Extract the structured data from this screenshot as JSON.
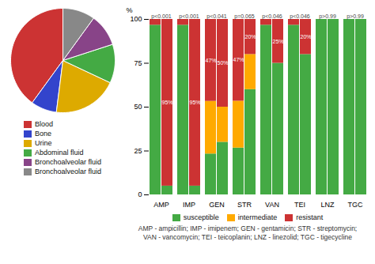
{
  "chart_data": [
    {
      "type": "pie",
      "categories": [
        "Blood",
        "Bone",
        "Urine",
        "Abdominal fluid",
        "Bronchoalveolar fluid",
        "Bronchoalveolar fluid"
      ],
      "values": [
        40,
        8,
        20,
        12,
        10,
        10
      ],
      "colors": [
        "#cc3333",
        "#3344cc",
        "#ddaa00",
        "#44aa44",
        "#884488",
        "#888888"
      ],
      "legend": "bottom"
    },
    {
      "type": "bar",
      "stacked": true,
      "categories": [
        "AMP",
        "IMP",
        "GEN",
        "STR",
        "VAN",
        "TEI",
        "LNZ",
        "TGC"
      ],
      "series": [
        {
          "name": "susceptible",
          "color": "#44aa44",
          "values": [
            [
              96.7,
              96.7,
              23.3,
              26.7,
              96.7,
              96.7,
              100,
              100
            ],
            [
              5,
              5,
              30,
              60,
              75,
              80,
              100,
              100
            ]
          ]
        },
        {
          "name": "intermediate",
          "color": "#ffaa00",
          "values": [
            [
              0,
              0,
              30,
              26.7,
              0,
              0,
              0,
              0
            ],
            [
              0,
              0,
              20,
              20,
              0,
              0,
              0,
              0
            ]
          ]
        },
        {
          "name": "resistant",
          "color": "#cc3333",
          "values": [
            [
              3.3,
              3.3,
              46.7,
              46.6,
              3.3,
              3.3,
              0,
              0
            ],
            [
              95,
              95,
              50,
              20,
              25,
              20,
              0,
              0
            ]
          ],
          "value_labels": [
            [
              null,
              null,
              "47%",
              "47%",
              null,
              null,
              null,
              null
            ],
            [
              "95%",
              "95%",
              "50%",
              "20%",
              "25%",
              "20%",
              null,
              null
            ]
          ]
        }
      ],
      "data_labels": true,
      "annotations": [
        "p<0.001",
        "p<0.001",
        "p<0.041",
        "p=0.065",
        "p<0.046",
        "p<0.046",
        "p>0.99",
        "p>0.99"
      ],
      "ylabel": "%",
      "xlabel": "AMP - ampicillin; IMP - imipenem; GEN - gentamicin; STR - streptomycin;\nVAN - vancomycin; TEI - teicoplanin; LNZ - linezolid; TGC - tigecycline",
      "ylim": [
        0,
        100
      ],
      "yticks": [
        0,
        25,
        50,
        75,
        100
      ],
      "legend": "bottom"
    }
  ]
}
